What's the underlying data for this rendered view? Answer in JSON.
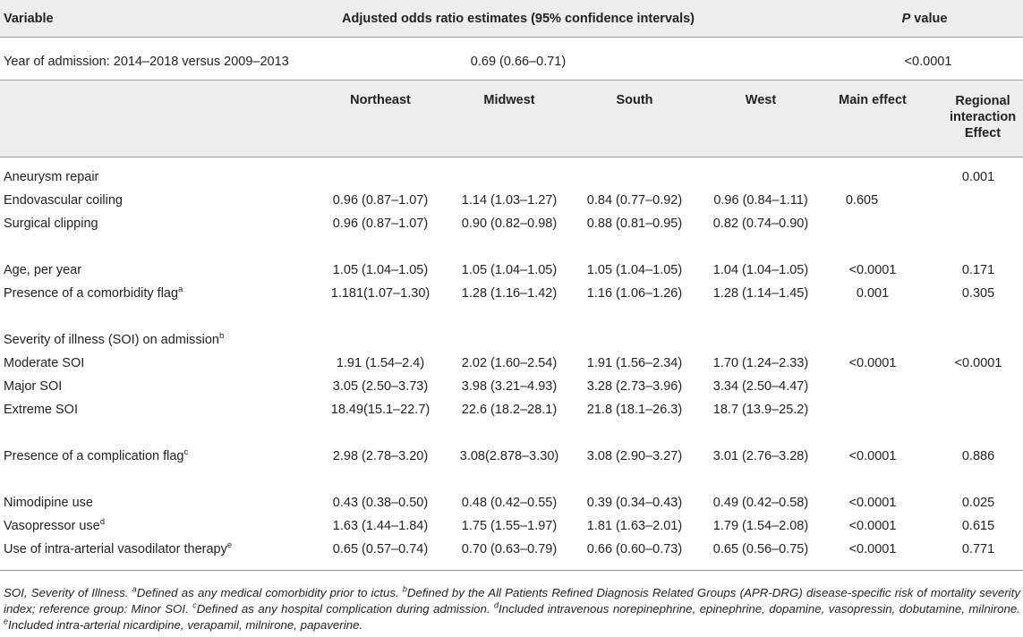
{
  "header": {
    "variable": "Variable",
    "estimates": "Adjusted odds ratio estimates (95% confidence intervals)",
    "p_italic": "P",
    "p_rest": " value"
  },
  "year_row": {
    "label": "Year of admission: 2014–2018 versus 2009–2013",
    "estimate": "0.69 (0.66–0.71)",
    "p": "<0.0001"
  },
  "columns": {
    "northeast": "Northeast",
    "midwest": "Midwest",
    "south": "South",
    "west": "West",
    "main": "Main effect",
    "regional": "Regional interaction Effect"
  },
  "rows": {
    "aneurysm": {
      "label": "Aneurysm repair",
      "regional": "0.001"
    },
    "coiling": {
      "label": "Endovascular coiling",
      "ne": "0.96 (0.87–1.07)",
      "mw": "1.14 (1.03–1.27)",
      "so": "0.84 (0.77–0.92)",
      "we": "0.96 (0.84–1.11)",
      "main": "0.605"
    },
    "clipping": {
      "label": "Surgical clipping",
      "ne": "0.96 (0.87–1.07)",
      "mw": "0.90 (0.82–0.98)",
      "so": "0.88 (0.81–0.95)",
      "we": "0.82 (0.74–0.90)"
    },
    "age": {
      "label": "Age, per year",
      "ne": "1.05 (1.04–1.05)",
      "mw": "1.05 (1.04–1.05)",
      "so": "1.05 (1.04–1.05)",
      "we": "1.04 (1.04–1.05)",
      "main": "<0.0001",
      "regional": "0.171"
    },
    "comorbidity": {
      "label": "Presence of a comorbidity flag",
      "sup": "a",
      "ne": "1.181(1.07–1.30)",
      "mw": "1.28 (1.16–1.42)",
      "so": "1.16 (1.06–1.26)",
      "we": "1.28 (1.14–1.45)",
      "main": "0.001",
      "regional": "0.305"
    },
    "soi": {
      "label": "Severity of illness (SOI) on admission",
      "sup": "b"
    },
    "moderate": {
      "label": "Moderate SOI",
      "ne": "1.91 (1.54–2.4)",
      "mw": "2.02 (1.60–2.54)",
      "so": "1.91 (1.56–2.34)",
      "we": "1.70 (1.24–2.33)",
      "main": "<0.0001",
      "regional": "<0.0001"
    },
    "major": {
      "label": "Major SOI",
      "ne": "3.05 (2.50–3.73)",
      "mw": "3.98 (3.21–4.93)",
      "so": "3.28 (2.73–3.96)",
      "we": "3.34 (2.50–4.47)"
    },
    "extreme": {
      "label": "Extreme SOI",
      "ne": "18.49(15.1–22.7)",
      "mw": "22.6 (18.2–28.1)",
      "so": "21.8 (18.1–26.3)",
      "we": "18.7 (13.9–25.2)"
    },
    "complication": {
      "label": "Presence of a complication flag",
      "sup": "c",
      "ne": "2.98 (2.78–3.20)",
      "mw": "3.08(2.878–3.30)",
      "so": "3.08 (2.90–3.27)",
      "we": "3.01 (2.76–3.28)",
      "main": "<0.0001",
      "regional": "0.886"
    },
    "nimodipine": {
      "label": "Nimodipine use",
      "ne": "0.43 (0.38–0.50)",
      "mw": "0.48 (0.42–0.55)",
      "so": "0.39 (0.34–0.43)",
      "we": "0.49 (0.42–0.58)",
      "main": "<0.0001",
      "regional": "0.025"
    },
    "vasopressor": {
      "label": "Vasopressor use",
      "sup": "d",
      "ne": "1.63 (1.44–1.84)",
      "mw": "1.75 (1.55–1.97)",
      "so": "1.81 (1.63–2.01)",
      "we": "1.79 (1.54–2.08)",
      "main": "<0.0001",
      "regional": "0.615"
    },
    "intraarterial": {
      "label": "Use of intra-arterial vasodilator therapy",
      "sup": "e",
      "ne": "0.65 (0.57–0.74)",
      "mw": "0.70 (0.63–0.79)",
      "so": "0.66 (0.60–0.73)",
      "we": "0.65 (0.56–0.75)",
      "main": "<0.0001",
      "regional": "0.771"
    }
  },
  "footnote": {
    "lead": "SOI, Severity of Illness. ",
    "a_sup": "a",
    "a_text": "Defined as any medical comorbidity prior to ictus. ",
    "b_sup": "b",
    "b_text": "Defined by the All Patients Refined Diagnosis Related Groups (APR-DRG) disease-specific risk of mortality severity index; reference group: Minor SOI. ",
    "c_sup": "c",
    "c_text": "Defined as any hospital complication during admission. ",
    "d_sup": "d",
    "d_text": "Included intravenous norepinephrine, epinephrine, dopamine, vasopressin, dobutamine, milnirone. ",
    "e_sup": "e",
    "e_text": "Included intra-arterial nicardipine, verapamil, milnirone, papaverine."
  },
  "colors": {
    "band": "#ededed",
    "rule": "#9a9a9a",
    "text": "#222222"
  }
}
